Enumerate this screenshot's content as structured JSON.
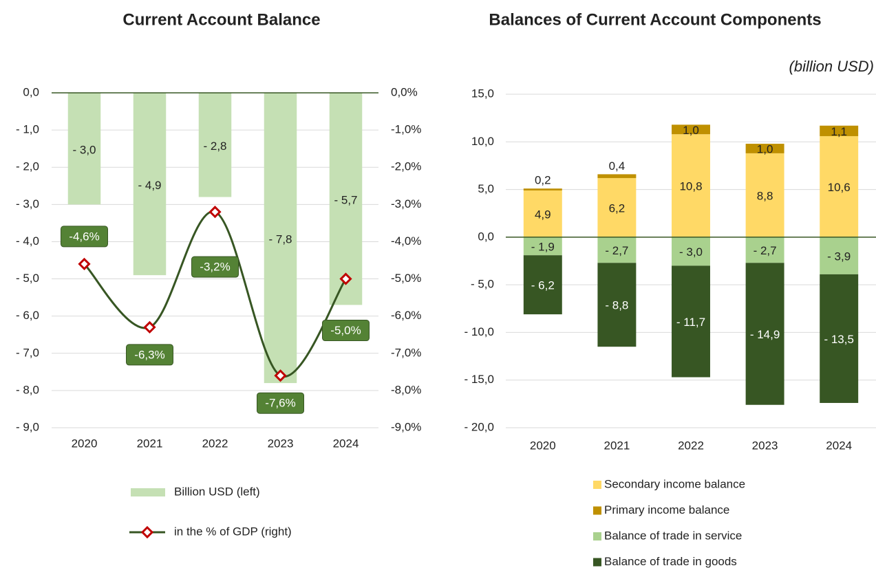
{
  "chart_data": [
    {
      "type": "combo",
      "title": "Current Account Balance",
      "categories": [
        "2020",
        "2021",
        "2022",
        "2023",
        "2024"
      ],
      "series": [
        {
          "name": "Billion USD (left)",
          "type": "bar",
          "color": "#c5e0b4",
          "values": [
            -3.0,
            -4.9,
            -2.8,
            -7.8,
            -5.7
          ],
          "value_labels": [
            "- 3,0",
            "- 4,9",
            "- 2,8",
            "- 7,8",
            "- 5,7"
          ]
        },
        {
          "name": "in the % of GDP (right)",
          "type": "line",
          "axis": "y2",
          "color": "#375623",
          "marker_color": "#c00000",
          "label_color": "#548235",
          "values": [
            -4.6,
            -6.3,
            -3.2,
            -7.6,
            -5.0
          ],
          "value_labels": [
            "-4,6%",
            "-6,3%",
            "-3,2%",
            "-7,6%",
            "-5,0%"
          ]
        }
      ],
      "ylim": [
        -9,
        0
      ],
      "yticks": [
        {
          "value": 0,
          "label": "0,0"
        },
        {
          "value": -1,
          "label": "- 1,0"
        },
        {
          "value": -2,
          "label": "- 2,0"
        },
        {
          "value": -3,
          "label": "- 3,0"
        },
        {
          "value": -4,
          "label": "- 4,0"
        },
        {
          "value": -5,
          "label": "- 5,0"
        },
        {
          "value": -6,
          "label": "- 6,0"
        },
        {
          "value": -7,
          "label": "- 7,0"
        },
        {
          "value": -8,
          "label": "- 8,0"
        },
        {
          "value": -9,
          "label": "- 9,0"
        }
      ],
      "y2lim": [
        -9,
        0
      ],
      "y2ticks": [
        {
          "value": 0,
          "label": "0,0%"
        },
        {
          "value": -1,
          "label": "-1,0%"
        },
        {
          "value": -2,
          "label": "-2,0%"
        },
        {
          "value": -3,
          "label": "-3,0%"
        },
        {
          "value": -4,
          "label": "-4,0%"
        },
        {
          "value": -5,
          "label": "-5,0%"
        },
        {
          "value": -6,
          "label": "-6,0%"
        },
        {
          "value": -7,
          "label": "-7,0%"
        },
        {
          "value": -8,
          "label": "-8,0%"
        },
        {
          "value": -9,
          "label": "-9,0%"
        }
      ],
      "grid": true
    },
    {
      "type": "stacked_bar",
      "title": "Balances of Current Account Components",
      "subtitle": "(billion USD)",
      "categories": [
        "2020",
        "2021",
        "2022",
        "2023",
        "2024"
      ],
      "series": [
        {
          "name": "Secondary income balance",
          "color": "#ffd966",
          "values": [
            4.9,
            6.2,
            10.8,
            8.8,
            10.6
          ],
          "value_labels": [
            "4,9",
            "6,2",
            "10,8",
            "8,8",
            "10,6"
          ]
        },
        {
          "name": "Primary income balance",
          "color": "#bf9000",
          "values": [
            0.2,
            0.4,
            1.0,
            1.0,
            1.1
          ],
          "value_labels": [
            "0,2",
            "0,4",
            "1,0",
            "1,0",
            "1,1"
          ]
        },
        {
          "name": "Balance of trade in service",
          "color": "#a9d18e",
          "values": [
            -1.9,
            -2.7,
            -3.0,
            -2.7,
            -3.9
          ],
          "value_labels": [
            "- 1,9",
            "- 2,7",
            "- 3,0",
            "- 2,7",
            "- 3,9"
          ]
        },
        {
          "name": "Balance of trade in goods",
          "color": "#375623",
          "label_color": "#ffffff",
          "values": [
            -6.2,
            -8.8,
            -11.7,
            -14.9,
            -13.5
          ],
          "value_labels": [
            "- 6,2",
            "- 8,8",
            "- 11,7",
            "- 14,9",
            "- 13,5"
          ]
        }
      ],
      "ylim": [
        -20,
        15
      ],
      "yticks": [
        {
          "value": 15,
          "label": "15,0"
        },
        {
          "value": 10,
          "label": "10,0"
        },
        {
          "value": 5,
          "label": "5,0"
        },
        {
          "value": 0,
          "label": "0,0"
        },
        {
          "value": -5,
          "label": "- 5,0"
        },
        {
          "value": -10,
          "label": "- 10,0"
        },
        {
          "value": -15,
          "label": "- 15,0"
        },
        {
          "value": -20,
          "label": "- 20,0"
        }
      ],
      "grid": true
    }
  ]
}
